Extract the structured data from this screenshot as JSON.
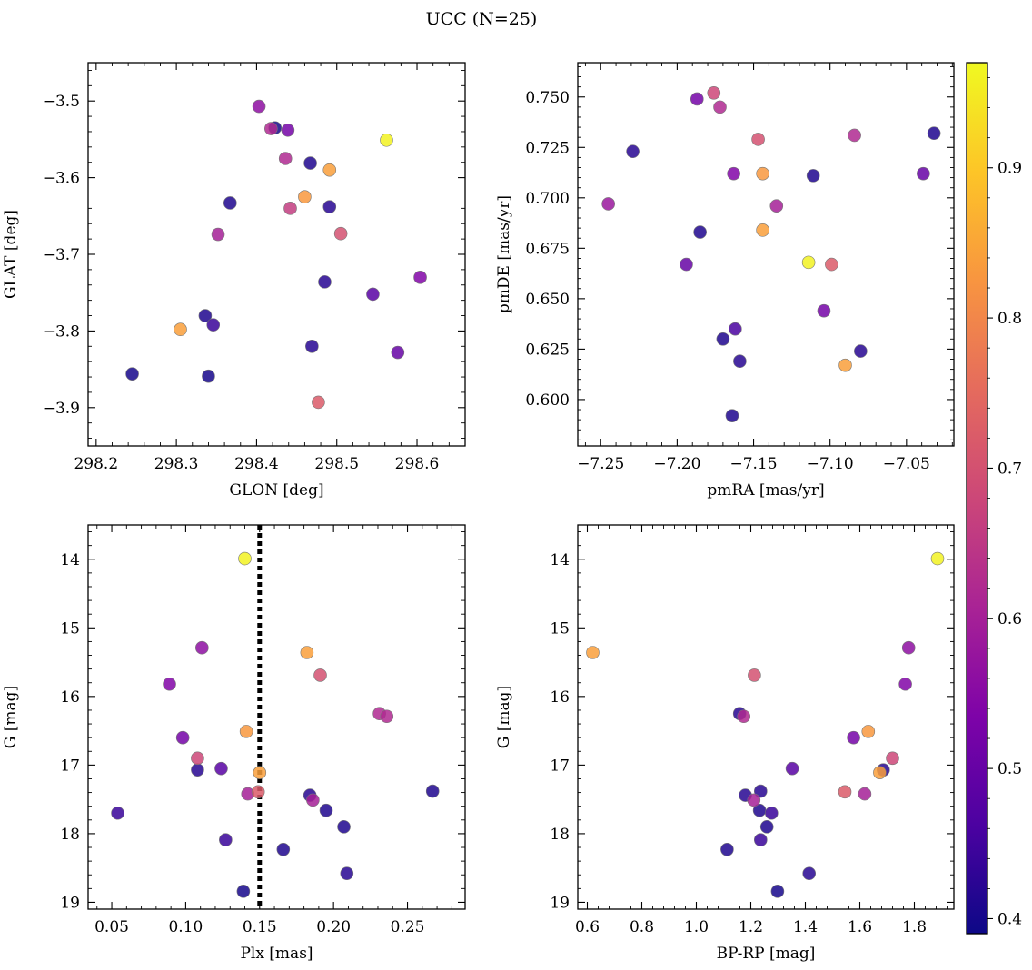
{
  "figure": {
    "title": "UCC (N=25)"
  },
  "colorbar": {
    "cmap": "plasma",
    "range": [
      0.39,
      0.97
    ],
    "ticks": [
      0.4,
      0.5,
      0.6,
      0.7,
      0.8,
      0.9
    ],
    "tick_labels": [
      "0.4",
      "0.5",
      "0.6",
      "0.7",
      "0.8",
      "0.9"
    ]
  },
  "chart_data": [
    {
      "id": "glon-glat",
      "type": "scatter",
      "title": "",
      "xlabel": "GLON [deg]",
      "ylabel": "GLAT [deg]",
      "xlim": [
        298.19,
        298.66
      ],
      "ylim": [
        -3.95,
        -3.45
      ],
      "y_inverted": false,
      "xticks": [
        298.2,
        298.3,
        298.4,
        298.5,
        298.6
      ],
      "xtick_labels": [
        "298.2",
        "298.3",
        "298.4",
        "298.5",
        "298.6"
      ],
      "yticks": [
        -3.5,
        -3.6,
        -3.7,
        -3.8,
        -3.9
      ],
      "ytick_labels": [
        "−3.5",
        "−3.6",
        "−3.7",
        "−3.8",
        "−3.9"
      ],
      "points": [
        {
          "x": 298.403,
          "y": -3.507,
          "c": 0.56
        },
        {
          "x": 298.418,
          "y": -3.536,
          "c": 0.62
        },
        {
          "x": 298.423,
          "y": -3.535,
          "c": 0.4
        },
        {
          "x": 298.439,
          "y": -3.538,
          "c": 0.52
        },
        {
          "x": 298.562,
          "y": -3.551,
          "c": 0.96
        },
        {
          "x": 298.436,
          "y": -3.575,
          "c": 0.62
        },
        {
          "x": 298.467,
          "y": -3.581,
          "c": 0.41
        },
        {
          "x": 298.491,
          "y": -3.59,
          "c": 0.84
        },
        {
          "x": 298.46,
          "y": -3.625,
          "c": 0.83
        },
        {
          "x": 298.367,
          "y": -3.633,
          "c": 0.41
        },
        {
          "x": 298.491,
          "y": -3.638,
          "c": 0.42
        },
        {
          "x": 298.442,
          "y": -3.64,
          "c": 0.66
        },
        {
          "x": 298.352,
          "y": -3.674,
          "c": 0.6
        },
        {
          "x": 298.505,
          "y": -3.673,
          "c": 0.7
        },
        {
          "x": 298.604,
          "y": -3.73,
          "c": 0.54
        },
        {
          "x": 298.485,
          "y": -3.736,
          "c": 0.42
        },
        {
          "x": 298.545,
          "y": -3.752,
          "c": 0.48
        },
        {
          "x": 298.336,
          "y": -3.78,
          "c": 0.41
        },
        {
          "x": 298.346,
          "y": -3.792,
          "c": 0.44
        },
        {
          "x": 298.305,
          "y": -3.798,
          "c": 0.84
        },
        {
          "x": 298.469,
          "y": -3.82,
          "c": 0.42
        },
        {
          "x": 298.576,
          "y": -3.828,
          "c": 0.5
        },
        {
          "x": 298.245,
          "y": -3.856,
          "c": 0.4
        },
        {
          "x": 298.34,
          "y": -3.859,
          "c": 0.4
        },
        {
          "x": 298.477,
          "y": -3.893,
          "c": 0.72
        }
      ]
    },
    {
      "id": "pmra-pmde",
      "type": "scatter",
      "title": "",
      "xlabel": "pmRA [mas/yr]",
      "ylabel": "pmDE [mas/yr]",
      "xlim": [
        -7.265,
        -7.019
      ],
      "ylim": [
        0.577,
        0.767
      ],
      "y_inverted": false,
      "xticks": [
        -7.25,
        -7.2,
        -7.15,
        -7.1,
        -7.05
      ],
      "xtick_labels": [
        "−7.25",
        "−7.20",
        "−7.15",
        "−7.10",
        "−7.05"
      ],
      "yticks": [
        0.6,
        0.625,
        0.65,
        0.675,
        0.7,
        0.725,
        0.75
      ],
      "ytick_labels": [
        "0.600",
        "0.625",
        "0.650",
        "0.675",
        "0.700",
        "0.725",
        "0.750"
      ],
      "points": [
        {
          "x": -7.176,
          "y": 0.752,
          "c": 0.68
        },
        {
          "x": -7.187,
          "y": 0.749,
          "c": 0.52
        },
        {
          "x": -7.172,
          "y": 0.745,
          "c": 0.62
        },
        {
          "x": -7.032,
          "y": 0.732,
          "c": 0.41
        },
        {
          "x": -7.084,
          "y": 0.731,
          "c": 0.62
        },
        {
          "x": -7.147,
          "y": 0.729,
          "c": 0.7
        },
        {
          "x": -7.229,
          "y": 0.723,
          "c": 0.42
        },
        {
          "x": -7.163,
          "y": 0.712,
          "c": 0.54
        },
        {
          "x": -7.144,
          "y": 0.712,
          "c": 0.83
        },
        {
          "x": -7.039,
          "y": 0.712,
          "c": 0.5
        },
        {
          "x": -7.111,
          "y": 0.711,
          "c": 0.41
        },
        {
          "x": -7.245,
          "y": 0.697,
          "c": 0.58
        },
        {
          "x": -7.135,
          "y": 0.696,
          "c": 0.6
        },
        {
          "x": -7.185,
          "y": 0.683,
          "c": 0.41
        },
        {
          "x": -7.144,
          "y": 0.684,
          "c": 0.84
        },
        {
          "x": -7.114,
          "y": 0.668,
          "c": 0.96
        },
        {
          "x": -7.099,
          "y": 0.667,
          "c": 0.72
        },
        {
          "x": -7.194,
          "y": 0.667,
          "c": 0.5
        },
        {
          "x": -7.104,
          "y": 0.644,
          "c": 0.52
        },
        {
          "x": -7.162,
          "y": 0.635,
          "c": 0.46
        },
        {
          "x": -7.17,
          "y": 0.63,
          "c": 0.41
        },
        {
          "x": -7.08,
          "y": 0.624,
          "c": 0.42
        },
        {
          "x": -7.159,
          "y": 0.619,
          "c": 0.42
        },
        {
          "x": -7.09,
          "y": 0.617,
          "c": 0.84
        },
        {
          "x": -7.164,
          "y": 0.592,
          "c": 0.41
        }
      ]
    },
    {
      "id": "plx-g",
      "type": "scatter",
      "title": "",
      "xlabel": "Plx [mas]",
      "ylabel": "G [mag]",
      "xlim": [
        0.034,
        0.289
      ],
      "ylim": [
        19.1,
        13.5
      ],
      "y_inverted": true,
      "xticks": [
        0.05,
        0.1,
        0.15,
        0.2,
        0.25
      ],
      "xtick_labels": [
        "0.05",
        "0.10",
        "0.15",
        "0.20",
        "0.25"
      ],
      "yticks": [
        14,
        15,
        16,
        17,
        18,
        19
      ],
      "ytick_labels": [
        "14",
        "15",
        "16",
        "17",
        "18",
        "19"
      ],
      "vline": {
        "x": 0.15,
        "style": "dotted"
      },
      "points": [
        {
          "x": 0.14,
          "y": 13.99,
          "c": 0.96
        },
        {
          "x": 0.111,
          "y": 15.29,
          "c": 0.56
        },
        {
          "x": 0.182,
          "y": 15.36,
          "c": 0.84
        },
        {
          "x": 0.191,
          "y": 15.69,
          "c": 0.7
        },
        {
          "x": 0.089,
          "y": 15.82,
          "c": 0.54
        },
        {
          "x": 0.231,
          "y": 16.25,
          "c": 0.62
        },
        {
          "x": 0.236,
          "y": 16.29,
          "c": 0.62
        },
        {
          "x": 0.141,
          "y": 16.51,
          "c": 0.83
        },
        {
          "x": 0.098,
          "y": 16.6,
          "c": 0.52
        },
        {
          "x": 0.108,
          "y": 16.9,
          "c": 0.68
        },
        {
          "x": 0.108,
          "y": 17.07,
          "c": 0.42
        },
        {
          "x": 0.124,
          "y": 17.05,
          "c": 0.48
        },
        {
          "x": 0.15,
          "y": 17.11,
          "c": 0.84
        },
        {
          "x": 0.149,
          "y": 17.39,
          "c": 0.72
        },
        {
          "x": 0.267,
          "y": 17.38,
          "c": 0.41
        },
        {
          "x": 0.142,
          "y": 17.42,
          "c": 0.6
        },
        {
          "x": 0.184,
          "y": 17.44,
          "c": 0.42
        },
        {
          "x": 0.186,
          "y": 17.51,
          "c": 0.6
        },
        {
          "x": 0.195,
          "y": 17.66,
          "c": 0.41
        },
        {
          "x": 0.054,
          "y": 17.7,
          "c": 0.44
        },
        {
          "x": 0.207,
          "y": 17.9,
          "c": 0.41
        },
        {
          "x": 0.127,
          "y": 18.09,
          "c": 0.44
        },
        {
          "x": 0.166,
          "y": 18.23,
          "c": 0.41
        },
        {
          "x": 0.209,
          "y": 18.58,
          "c": 0.42
        },
        {
          "x": 0.139,
          "y": 18.84,
          "c": 0.4
        }
      ]
    },
    {
      "id": "bprp-g",
      "type": "scatter",
      "title": "",
      "xlabel": "BP-RP [mag]",
      "ylabel": "G [mag]",
      "xlim": [
        0.565,
        1.945
      ],
      "ylim": [
        19.1,
        13.5
      ],
      "y_inverted": true,
      "xticks": [
        0.6,
        0.8,
        1.0,
        1.2,
        1.4,
        1.6,
        1.8
      ],
      "xtick_labels": [
        "0.6",
        "0.8",
        "1.0",
        "1.2",
        "1.4",
        "1.6",
        "1.8"
      ],
      "yticks": [
        14,
        15,
        16,
        17,
        18,
        19
      ],
      "ytick_labels": [
        "14",
        "15",
        "16",
        "17",
        "18",
        "19"
      ],
      "points": [
        {
          "x": 1.885,
          "y": 13.99,
          "c": 0.96
        },
        {
          "x": 0.62,
          "y": 15.36,
          "c": 0.84
        },
        {
          "x": 1.779,
          "y": 15.29,
          "c": 0.56
        },
        {
          "x": 1.213,
          "y": 15.69,
          "c": 0.7
        },
        {
          "x": 1.767,
          "y": 15.82,
          "c": 0.54
        },
        {
          "x": 1.159,
          "y": 16.25,
          "c": 0.42
        },
        {
          "x": 1.174,
          "y": 16.29,
          "c": 0.62
        },
        {
          "x": 1.631,
          "y": 16.51,
          "c": 0.83
        },
        {
          "x": 1.577,
          "y": 16.6,
          "c": 0.52
        },
        {
          "x": 1.72,
          "y": 16.9,
          "c": 0.68
        },
        {
          "x": 1.352,
          "y": 17.05,
          "c": 0.48
        },
        {
          "x": 1.686,
          "y": 17.07,
          "c": 0.42
        },
        {
          "x": 1.673,
          "y": 17.11,
          "c": 0.84
        },
        {
          "x": 1.545,
          "y": 17.39,
          "c": 0.72
        },
        {
          "x": 1.236,
          "y": 17.38,
          "c": 0.42
        },
        {
          "x": 1.618,
          "y": 17.42,
          "c": 0.6
        },
        {
          "x": 1.18,
          "y": 17.44,
          "c": 0.42
        },
        {
          "x": 1.211,
          "y": 17.51,
          "c": 0.6
        },
        {
          "x": 1.232,
          "y": 17.66,
          "c": 0.41
        },
        {
          "x": 1.276,
          "y": 17.7,
          "c": 0.44
        },
        {
          "x": 1.259,
          "y": 17.9,
          "c": 0.41
        },
        {
          "x": 1.236,
          "y": 18.09,
          "c": 0.44
        },
        {
          "x": 1.113,
          "y": 18.23,
          "c": 0.41
        },
        {
          "x": 1.414,
          "y": 18.58,
          "c": 0.42
        },
        {
          "x": 1.298,
          "y": 18.84,
          "c": 0.4
        }
      ]
    }
  ]
}
